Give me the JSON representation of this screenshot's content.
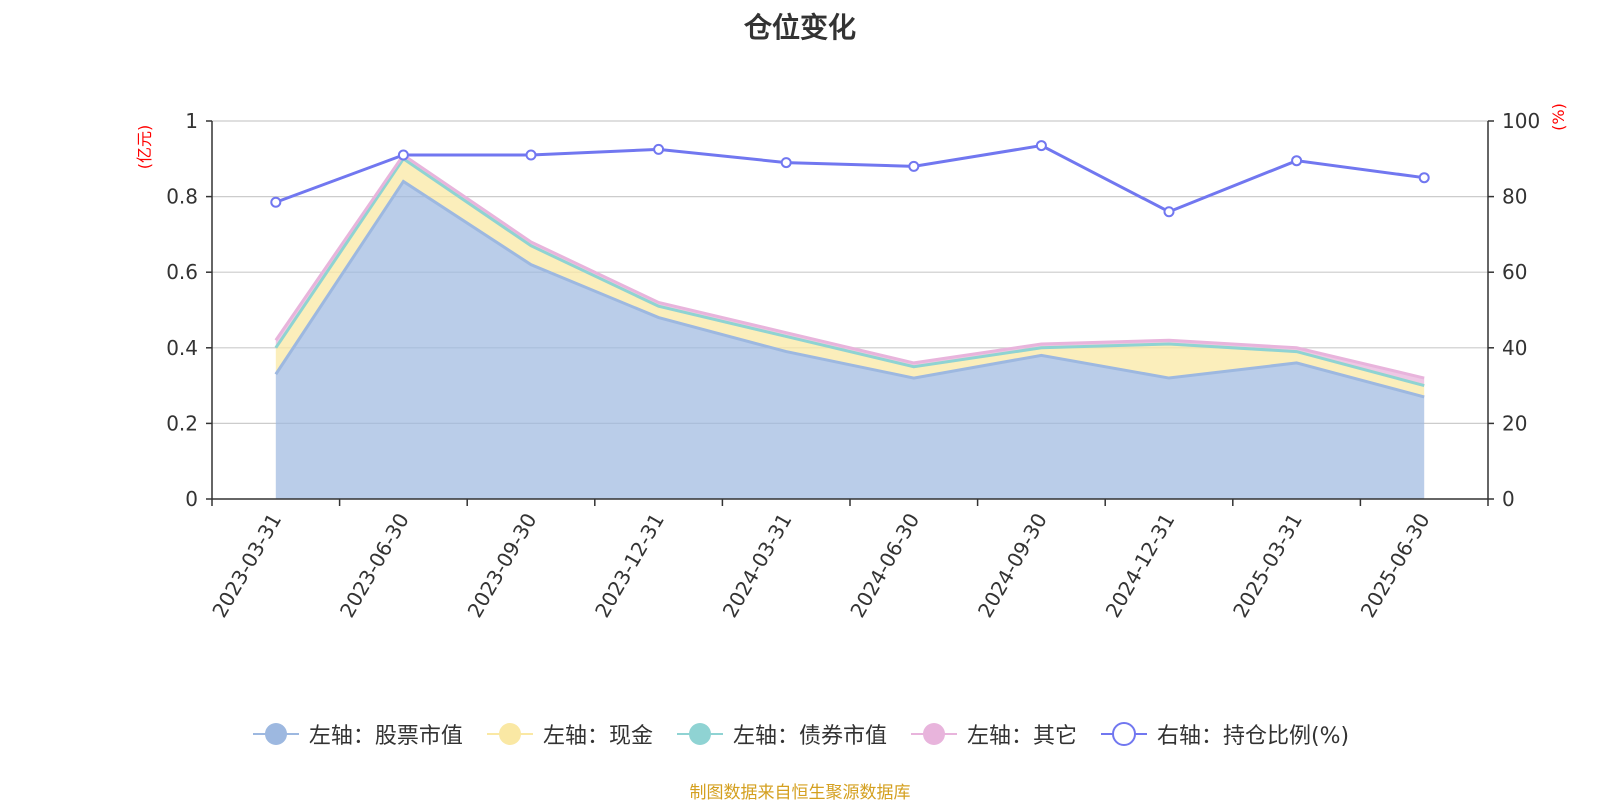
{
  "chart_data": {
    "type": "area",
    "title": "仓位变化",
    "categories": [
      "2023-03-31",
      "2023-06-30",
      "2023-09-30",
      "2023-12-31",
      "2024-03-31",
      "2024-06-30",
      "2024-09-30",
      "2024-12-31",
      "2025-03-31",
      "2025-06-30"
    ],
    "left_axis": {
      "unit": "(亿元)",
      "ylim": [
        0,
        1
      ],
      "ticks": [
        "0",
        "0.2",
        "0.4",
        "0.6",
        "0.8",
        "1"
      ]
    },
    "right_axis": {
      "unit": "(%)",
      "ylim": [
        0,
        100
      ],
      "ticks": [
        "0",
        "20",
        "40",
        "60",
        "80",
        "100"
      ]
    },
    "stacked_series": [
      {
        "name": "左轴：股票市值",
        "color": "#9db8e0",
        "values": [
          0.33,
          0.84,
          0.62,
          0.48,
          0.39,
          0.32,
          0.38,
          0.32,
          0.36,
          0.27
        ]
      },
      {
        "name": "左轴：现金",
        "color": "#fae8a4",
        "values": [
          0.07,
          0.06,
          0.05,
          0.03,
          0.04,
          0.03,
          0.02,
          0.09,
          0.03,
          0.03
        ]
      },
      {
        "name": "左轴：债券市值",
        "color": "#8fd3d3",
        "values": [
          0,
          0,
          0,
          0,
          0,
          0,
          0,
          0,
          0,
          0
        ]
      },
      {
        "name": "左轴：其它",
        "color": "#e8b4dc",
        "values": [
          0.02,
          0.01,
          0.01,
          0.01,
          0.01,
          0.01,
          0.01,
          0.01,
          0.01,
          0.02
        ]
      }
    ],
    "line_series": {
      "name": "右轴：持仓比例(%)",
      "color": "#7177f0",
      "values": [
        78.5,
        91,
        91,
        92.5,
        89,
        88,
        93.5,
        76,
        89.5,
        85
      ]
    },
    "grid": true,
    "legend_position": "bottom"
  },
  "source_note": "制图数据来自恒生聚源数据库"
}
